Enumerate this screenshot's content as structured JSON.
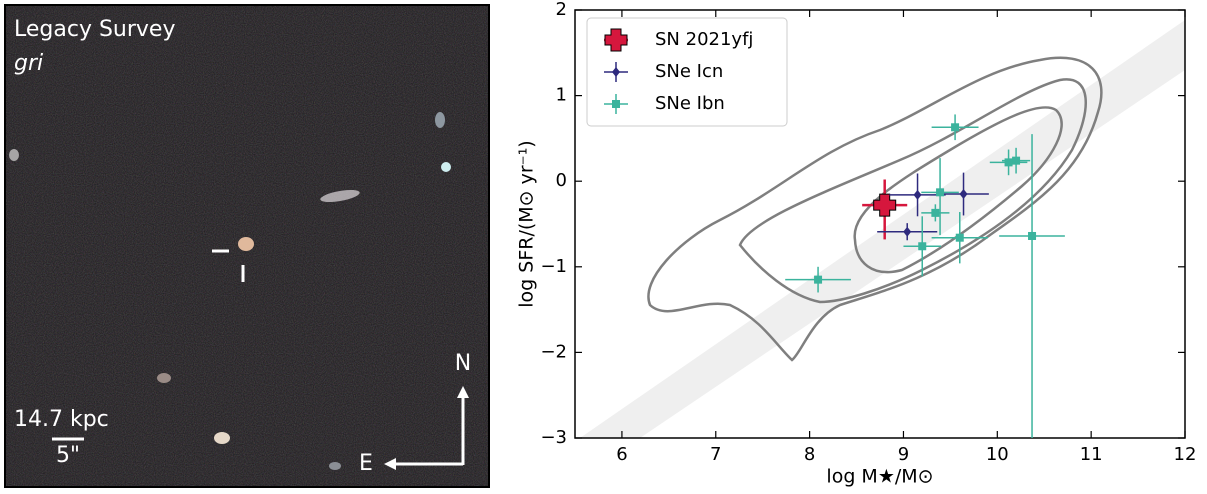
{
  "image_panel": {
    "survey": "Legacy Survey",
    "filters": "gri",
    "scale": "14.7 kpc",
    "angular_scale": "5\"",
    "north": "N",
    "east": "E"
  },
  "chart_data": {
    "type": "scatter",
    "xlabel": "log M★/M⊙",
    "ylabel": "log SFR/(M⊙ yr⁻¹)",
    "xlim": [
      5.5,
      12
    ],
    "xticks": [
      6,
      7,
      8,
      9,
      10,
      11,
      12
    ],
    "ylim": [
      -3,
      2
    ],
    "yticks": [
      {
        "value": -3,
        "label": "−3"
      },
      {
        "value": -2,
        "label": "−2"
      },
      {
        "value": -1,
        "label": "−1"
      },
      0,
      1,
      2
    ],
    "legend": "upper left",
    "series": [
      {
        "name": "SN 2021yfj",
        "color": "#d6173d",
        "marker": "plus",
        "x": [
          8.8
        ],
        "values": [
          -0.28
        ],
        "xerr": [
          0.24
        ],
        "yerr": [
          [
            0.4,
            0.3
          ]
        ]
      },
      {
        "name": "SNe Icn",
        "color": "#2e2a7e",
        "marker": "diamond",
        "x": [
          9.15,
          9.04,
          9.64
        ],
        "values": [
          -0.16,
          -0.59,
          -0.15
        ],
        "xerr": [
          0.3,
          0.32,
          0.27
        ],
        "yerr": [
          [
            0.25,
            0.25
          ],
          [
            0.1,
            0.1
          ],
          [
            0.25,
            0.25
          ]
        ]
      },
      {
        "name": "SNe Ibn",
        "color": "#3bb39d",
        "marker": "square",
        "x": [
          9.55,
          9.39,
          9.34,
          9.2,
          9.6,
          10.12,
          10.2,
          10.37,
          8.09
        ],
        "values": [
          0.63,
          -0.13,
          -0.37,
          -0.76,
          -0.66,
          0.22,
          0.24,
          -0.64,
          -1.15
        ],
        "xerr": [
          0.25,
          0.2,
          0.15,
          0.2,
          0.3,
          0.2,
          0.15,
          0.35,
          0.35
        ],
        "yerr": [
          [
            0.15,
            0.15
          ],
          [
            0.5,
            0.4
          ],
          [
            0.1,
            0.1
          ],
          [
            0.35,
            0.35
          ],
          [
            0.3,
            0.3
          ],
          [
            0.15,
            0.15
          ],
          [
            0.15,
            0.15
          ],
          [
            2.36,
            1.19
          ],
          [
            0.15,
            0.15
          ]
        ]
      }
    ]
  }
}
